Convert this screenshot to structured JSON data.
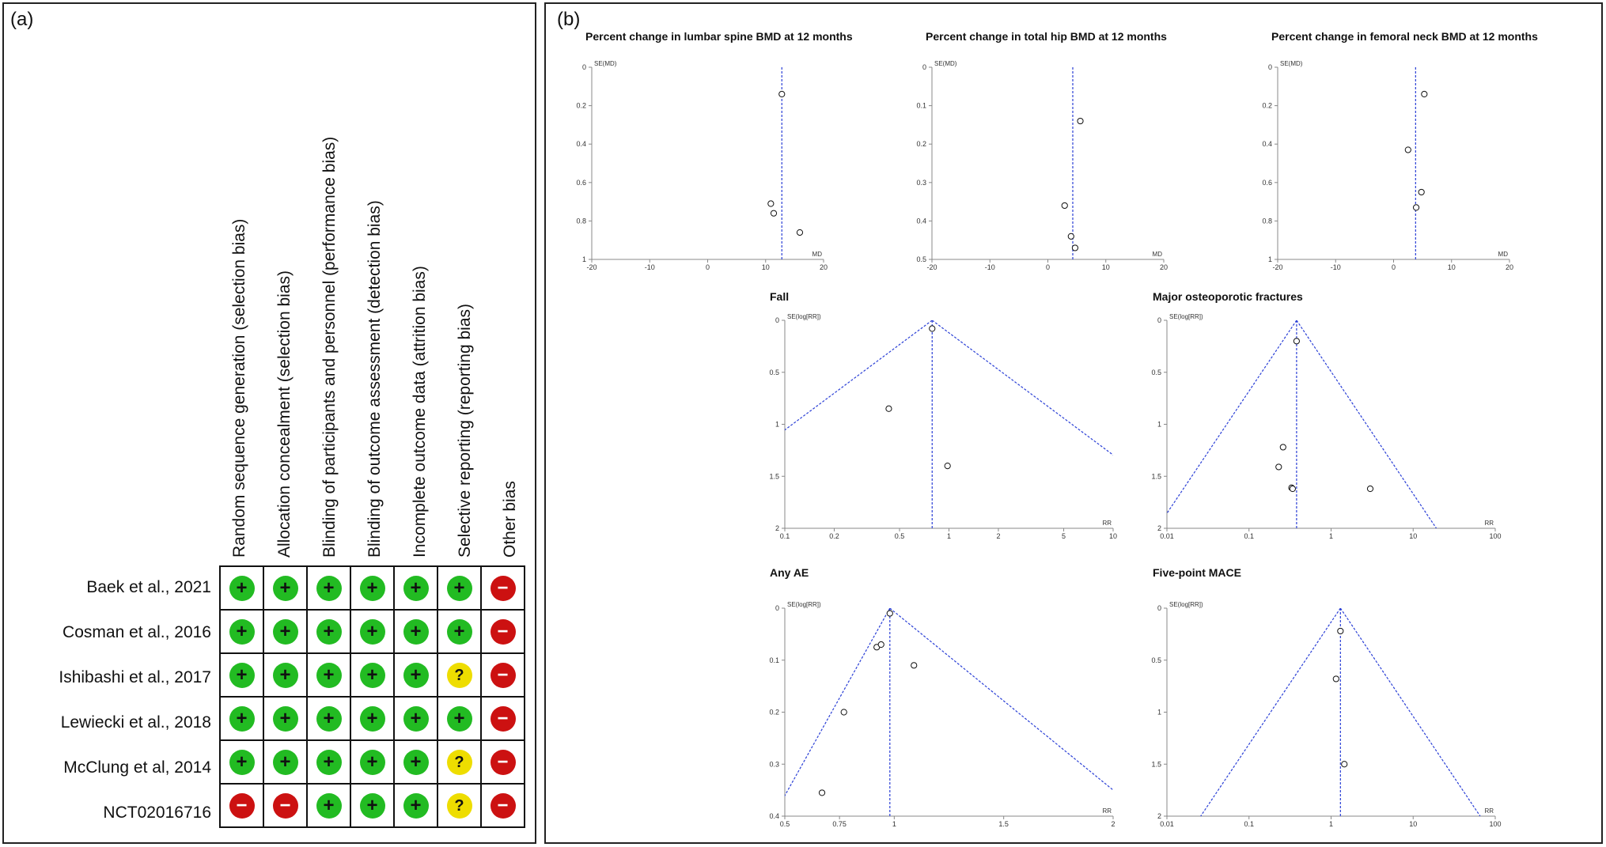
{
  "panel_a": {
    "label": "(a)",
    "columns": [
      "Random sequence generation (selection bias)",
      "Allocation concealment (selection bias)",
      "Blinding of participants and personnel (performance bias)",
      "Blinding of outcome assessment (detection bias)",
      "Incomplete outcome data (attrition bias)",
      "Selective reporting (reporting bias)",
      "Other bias"
    ],
    "symbols": {
      "low": "+",
      "unclear": "?",
      "high": "−"
    },
    "colors": {
      "low": "#22bb22",
      "unclear": "#eedd00",
      "high": "#cc1111"
    },
    "studies": [
      {
        "name": "Baek et al., 2021",
        "ratings": [
          "low",
          "low",
          "low",
          "low",
          "low",
          "low",
          "high"
        ]
      },
      {
        "name": "Cosman et al., 2016",
        "ratings": [
          "low",
          "low",
          "low",
          "low",
          "low",
          "low",
          "high"
        ]
      },
      {
        "name": "Ishibashi et al., 2017",
        "ratings": [
          "low",
          "low",
          "low",
          "low",
          "low",
          "unclear",
          "high"
        ]
      },
      {
        "name": "Lewiecki et al., 2018",
        "ratings": [
          "low",
          "low",
          "low",
          "low",
          "low",
          "low",
          "high"
        ]
      },
      {
        "name": "McClung et al, 2014",
        "ratings": [
          "low",
          "low",
          "low",
          "low",
          "low",
          "unclear",
          "high"
        ]
      },
      {
        "name": "NCT02016716",
        "ratings": [
          "high",
          "high",
          "low",
          "low",
          "low",
          "unclear",
          "high"
        ]
      }
    ]
  },
  "panel_b": {
    "label": "(b)"
  },
  "chart_data": [
    {
      "type": "scatter",
      "title": "Percent change in lumbar spine BMD at 12 months",
      "xlabel": "MD",
      "ylabel": "SE(MD)",
      "xscale": "linear",
      "xlim": [
        -20,
        20
      ],
      "ylim": [
        0,
        1
      ],
      "yreversed": true,
      "xticks": [
        -20,
        -10,
        0,
        10,
        20
      ],
      "yticks": [
        0,
        0.2,
        0.4,
        0.6,
        0.8,
        1
      ],
      "xtick_labels": [
        "-20",
        "-10",
        "0",
        "10",
        "20"
      ],
      "ytick_labels": [
        "0",
        "0.2",
        "0.4",
        "0.6",
        "0.8",
        "1"
      ],
      "pooled": 12.8,
      "funnel": false,
      "points": [
        {
          "x": 12.8,
          "y": 0.14
        },
        {
          "x": 10.9,
          "y": 0.71
        },
        {
          "x": 11.4,
          "y": 0.76
        },
        {
          "x": 15.9,
          "y": 0.86
        }
      ]
    },
    {
      "type": "scatter",
      "title": "Percent change in total hip BMD at 12 months",
      "xlabel": "MD",
      "ylabel": "SE(MD)",
      "xscale": "linear",
      "xlim": [
        -20,
        20
      ],
      "ylim": [
        0,
        0.5
      ],
      "yreversed": true,
      "xticks": [
        -20,
        -10,
        0,
        10,
        20
      ],
      "yticks": [
        0,
        0.1,
        0.2,
        0.3,
        0.4,
        0.5
      ],
      "xtick_labels": [
        "-20",
        "-10",
        "0",
        "10",
        "20"
      ],
      "ytick_labels": [
        "0",
        "0.1",
        "0.2",
        "0.3",
        "0.4",
        "0.5"
      ],
      "pooled": 4.3,
      "funnel": false,
      "points": [
        {
          "x": 5.6,
          "y": 0.14
        },
        {
          "x": 2.9,
          "y": 0.36
        },
        {
          "x": 4.0,
          "y": 0.44
        },
        {
          "x": 4.7,
          "y": 0.47
        }
      ]
    },
    {
      "type": "scatter",
      "title": "Percent change in femoral neck BMD at 12 months",
      "xlabel": "MD",
      "ylabel": "SE(MD)",
      "xscale": "linear",
      "xlim": [
        -20,
        20
      ],
      "ylim": [
        0,
        1
      ],
      "yreversed": true,
      "xticks": [
        -20,
        -10,
        0,
        10,
        20
      ],
      "yticks": [
        0,
        0.2,
        0.4,
        0.6,
        0.8,
        1
      ],
      "xtick_labels": [
        "-20",
        "-10",
        "0",
        "10",
        "20"
      ],
      "ytick_labels": [
        "0",
        "0.2",
        "0.4",
        "0.6",
        "0.8",
        "1"
      ],
      "pooled": 3.8,
      "funnel": false,
      "points": [
        {
          "x": 5.3,
          "y": 0.14
        },
        {
          "x": 2.5,
          "y": 0.43
        },
        {
          "x": 4.8,
          "y": 0.65
        },
        {
          "x": 3.9,
          "y": 0.73
        }
      ]
    },
    {
      "type": "scatter",
      "title": "Fall",
      "xlabel": "RR",
      "ylabel": "SE(log[RR])",
      "xscale": "log",
      "xlim": [
        0.1,
        10
      ],
      "ylim": [
        0,
        2
      ],
      "yreversed": true,
      "xticks": [
        0.1,
        0.2,
        0.5,
        1,
        2,
        5,
        10
      ],
      "yticks": [
        0,
        0.5,
        1,
        1.5,
        2
      ],
      "xtick_labels": [
        "0.1",
        "0.2",
        "0.5",
        "1",
        "2",
        "5",
        "10"
      ],
      "ytick_labels": [
        "0",
        "0.5",
        "1",
        "1.5",
        "2"
      ],
      "pooled": 0.79,
      "funnel": true,
      "points": [
        {
          "x": 0.79,
          "y": 0.08
        },
        {
          "x": 0.43,
          "y": 0.85
        },
        {
          "x": 0.98,
          "y": 1.4
        }
      ]
    },
    {
      "type": "scatter",
      "title": "Major osteoporotic fractures",
      "xlabel": "RR",
      "ylabel": "SE(log[RR])",
      "xscale": "log",
      "xlim": [
        0.01,
        100
      ],
      "ylim": [
        0,
        2
      ],
      "yreversed": true,
      "xticks": [
        0.01,
        0.1,
        1,
        10,
        100
      ],
      "yticks": [
        0,
        0.5,
        1,
        1.5,
        2
      ],
      "xtick_labels": [
        "0.01",
        "0.1",
        "1",
        "10",
        "100"
      ],
      "ytick_labels": [
        "0",
        "0.5",
        "1",
        "1.5",
        "2"
      ],
      "pooled": 0.38,
      "funnel": true,
      "points": [
        {
          "x": 0.38,
          "y": 0.2
        },
        {
          "x": 0.26,
          "y": 1.22
        },
        {
          "x": 0.23,
          "y": 1.41
        },
        {
          "x": 0.33,
          "y": 1.61
        },
        {
          "x": 0.34,
          "y": 1.62
        },
        {
          "x": 3.0,
          "y": 1.62
        }
      ]
    },
    {
      "type": "scatter",
      "title": "Any AE",
      "xlabel": "RR",
      "ylabel": "SE(log[RR])",
      "xscale": "linear",
      "xlim": [
        0.5,
        2
      ],
      "ylim": [
        0,
        0.4
      ],
      "yreversed": true,
      "xticks": [
        0.5,
        0.75,
        1,
        1.5,
        2
      ],
      "yticks": [
        0,
        0.1,
        0.2,
        0.3,
        0.4
      ],
      "xtick_labels": [
        "0.5",
        "0.75",
        "1",
        "1.5",
        "2"
      ],
      "ytick_labels": [
        "0",
        "0.1",
        "0.2",
        "0.3",
        "0.4"
      ],
      "pooled": 0.98,
      "funnel": true,
      "points": [
        {
          "x": 0.98,
          "y": 0.01
        },
        {
          "x": 0.92,
          "y": 0.075
        },
        {
          "x": 0.94,
          "y": 0.07
        },
        {
          "x": 1.09,
          "y": 0.11
        },
        {
          "x": 0.77,
          "y": 0.2
        },
        {
          "x": 0.67,
          "y": 0.355
        }
      ]
    },
    {
      "type": "scatter",
      "title": "Five-point MACE",
      "xlabel": "RR",
      "ylabel": "SE(log[RR])",
      "xscale": "log",
      "xlim": [
        0.01,
        100
      ],
      "ylim": [
        0,
        2
      ],
      "yreversed": true,
      "xticks": [
        0.01,
        0.1,
        1,
        10,
        100
      ],
      "yticks": [
        0,
        0.5,
        1,
        1.5,
        2
      ],
      "xtick_labels": [
        "0.01",
        "0.1",
        "1",
        "10",
        "100"
      ],
      "ytick_labels": [
        "0",
        "0.5",
        "1",
        "1.5",
        "2"
      ],
      "pooled": 1.3,
      "funnel": true,
      "points": [
        {
          "x": 1.3,
          "y": 0.22
        },
        {
          "x": 1.15,
          "y": 0.68
        },
        {
          "x": 1.45,
          "y": 1.5
        }
      ]
    }
  ]
}
